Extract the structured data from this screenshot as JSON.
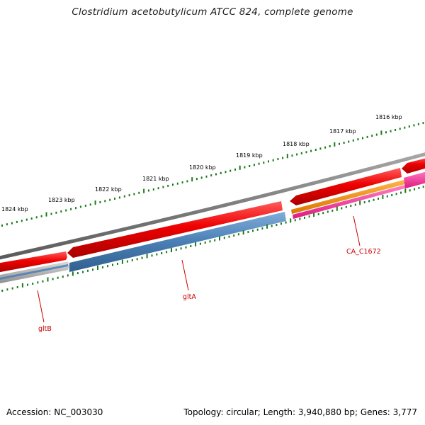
{
  "title": "Clostridium acetobutylicum ATCC 824, complete genome",
  "footer": {
    "accession": "Accession: NC_003030",
    "summary": "Topology: circular; Length: 3,940,880 bp; Genes: 3,777"
  },
  "ruler": {
    "labels": [
      "1816 kbp",
      "1817 kbp",
      "1818 kbp",
      "1819 kbp",
      "1820 kbp",
      "1821 kbp",
      "1822 kbp",
      "1823 kbp",
      "1824 kbp"
    ]
  },
  "genes": [
    {
      "label": "gltB"
    },
    {
      "label": "gltA"
    },
    {
      "label": "CA_C1672"
    }
  ],
  "colors": {
    "backbone": "#7d7d7d",
    "forward_cds": "#e60000",
    "gltA": "#4a7fb5",
    "gltB": "#b0b0b0",
    "CA_C1672": "#f08a00",
    "pink_feature": "#ff3da0",
    "ruler": "#1a7a1a",
    "label": "#cc0000"
  }
}
